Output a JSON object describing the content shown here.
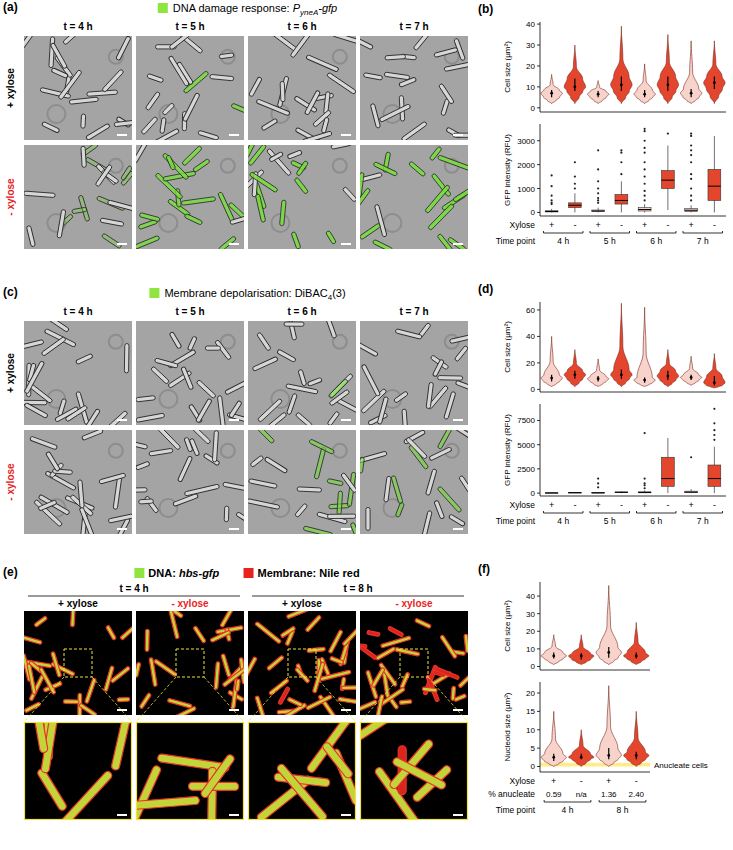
{
  "figure": {
    "panels": [
      {
        "letter": "(a)",
        "title": {
          "text": "DNA damage response: ",
          "main": "P",
          "sub": "yneA",
          "suffix": "-gfp",
          "italic": true,
          "color": "#8ee53f"
        },
        "columns": [
          "t = 4 h",
          "t = 5 h",
          "t = 6 h",
          "t = 7 h"
        ],
        "rows": [
          "+ xylose",
          "- xylose"
        ]
      },
      {
        "letter": "(c)",
        "title": {
          "text": "Membrane depolarisation: ",
          "main": "DiBAC",
          "sub": "4",
          "suffix": "(3)",
          "italic": false,
          "color": "#8ee53f"
        },
        "columns": [
          "t = 4 h",
          "t = 5 h",
          "t = 6 h",
          "t = 7 h"
        ],
        "rows": [
          "+ xylose",
          "- xylose"
        ]
      }
    ],
    "panel_e": {
      "letter": "(e)",
      "legend": [
        {
          "label": "DNA: ",
          "italic": "hbs-gfp",
          "color": "#8ee53f"
        },
        {
          "label": "Membrane: Nile red",
          "color": "#e8231c"
        }
      ],
      "groups": [
        "t = 4 h",
        "t = 8 h"
      ],
      "columns": [
        "+ xylose",
        "- xylose",
        "+ xylose",
        "- xylose"
      ]
    },
    "chart_letters": [
      "(b)",
      "(d)",
      "(f)"
    ]
  },
  "chart_data": [
    {
      "type": "violin",
      "y_title": "Cell size (µm²)",
      "categories": [
        null,
        null,
        null,
        null,
        null,
        null,
        null,
        null
      ],
      "colors": [
        "#f8d3cb",
        "#e4462d",
        "#f8d3cb",
        "#e4462d",
        "#f8d3cb",
        "#e4462d",
        "#f8d3cb",
        "#e4462d"
      ],
      "ylim": [
        -2,
        41
      ],
      "yticks": [
        0,
        10,
        20,
        30,
        40
      ],
      "values": [
        {
          "min": 2,
          "q1": 5,
          "median": 7,
          "q3": 8.5,
          "max": 16
        },
        {
          "min": 2,
          "q1": 8,
          "median": 10,
          "q3": 14,
          "max": 30
        },
        {
          "min": 2,
          "q1": 5,
          "median": 6.5,
          "q3": 8,
          "max": 13
        },
        {
          "min": 2,
          "q1": 8,
          "median": 11,
          "q3": 15,
          "max": 39
        },
        {
          "min": 2,
          "q1": 5,
          "median": 6.5,
          "q3": 8.5,
          "max": 21
        },
        {
          "min": 2,
          "q1": 8,
          "median": 11,
          "q3": 15,
          "max": 35
        },
        {
          "min": 2,
          "q1": 5,
          "median": 7,
          "q3": 9,
          "max": 32
        },
        {
          "min": 2,
          "q1": 9,
          "median": 12,
          "q3": 15,
          "max": 32
        }
      ]
    },
    {
      "type": "box",
      "y_title": "GFP intensity (RFU)",
      "categories": [
        "+",
        "-",
        "+",
        "-",
        "+",
        "-",
        "+",
        "-"
      ],
      "x_title": "Xylose",
      "groups": [
        "4 h",
        "5 h",
        "6 h",
        "7 h"
      ],
      "group_title": "Time point",
      "colors": [
        "#f8d3cb",
        "#e4462d",
        "#f8d3cb",
        "#e4462d",
        "#f8d3cb",
        "#e4462d",
        "#f8d3cb",
        "#e4462d"
      ],
      "ylim": [
        -150,
        3700
      ],
      "yticks": [
        0,
        1000,
        2000,
        3000
      ],
      "values": [
        {
          "whisker_low": 0,
          "q1": 20,
          "median": 40,
          "q3": 70,
          "whisker_high": 150,
          "outliers": [
            350,
            400,
            500,
            700,
            1100,
            1550
          ]
        },
        {
          "whisker_low": 0,
          "q1": 200,
          "median": 300,
          "q3": 400,
          "whisker_high": 800,
          "outliers": [
            1000,
            1200,
            1500,
            2100
          ]
        },
        {
          "whisker_low": 0,
          "q1": 30,
          "median": 60,
          "q3": 100,
          "whisker_high": 200,
          "outliers": [
            400,
            500,
            600,
            800,
            1000,
            1300,
            1800,
            2600
          ]
        },
        {
          "whisker_low": 0,
          "q1": 350,
          "median": 500,
          "q3": 750,
          "whisker_high": 1300,
          "outliers": [
            1600,
            2100,
            2500,
            2600
          ]
        },
        {
          "whisker_low": 0,
          "q1": 60,
          "median": 120,
          "q3": 200,
          "whisker_high": 350,
          "outliers": [
            500,
            700,
            900,
            1200,
            1500,
            1800,
            2100,
            2500,
            2700,
            3000,
            3400,
            3500
          ]
        },
        {
          "whisker_low": 100,
          "q1": 1000,
          "median": 1350,
          "q3": 1750,
          "whisker_high": 2800,
          "outliers": [
            3300
          ]
        },
        {
          "whisker_low": 0,
          "q1": 40,
          "median": 90,
          "q3": 160,
          "whisker_high": 300,
          "outliers": [
            500,
            700,
            1000,
            1400,
            1600,
            2100,
            2400,
            2600,
            2800,
            3200,
            3300
          ]
        },
        {
          "whisker_low": 0,
          "q1": 500,
          "median": 1100,
          "q3": 1800,
          "whisker_high": 3200,
          "outliers": []
        }
      ]
    },
    {
      "type": "violin",
      "y_title": "Cell size (µm²)",
      "categories": [
        null,
        null,
        null,
        null,
        null,
        null,
        null,
        null
      ],
      "colors": [
        "#f8d3cb",
        "#e4462d",
        "#f8d3cb",
        "#e4462d",
        "#f8d3cb",
        "#e4462d",
        "#f8d3cb",
        "#e4462d"
      ],
      "ylim": [
        -2,
        66
      ],
      "yticks": [
        0,
        20,
        40,
        60
      ],
      "values": [
        {
          "min": 2,
          "q1": 6,
          "median": 8.5,
          "q3": 11,
          "max": 40
        },
        {
          "min": 2,
          "q1": 8,
          "median": 11,
          "q3": 14,
          "max": 30
        },
        {
          "min": 2,
          "q1": 6,
          "median": 8,
          "q3": 10,
          "max": 23
        },
        {
          "min": 2,
          "q1": 8,
          "median": 11,
          "q3": 15,
          "max": 65
        },
        {
          "min": 2,
          "q1": 5,
          "median": 7,
          "q3": 9,
          "max": 62
        },
        {
          "min": 2,
          "q1": 7,
          "median": 10,
          "q3": 14,
          "max": 30
        },
        {
          "min": 3,
          "q1": 7,
          "median": 9,
          "q3": 11,
          "max": 25
        },
        {
          "min": 1,
          "q1": 3,
          "median": 5,
          "q3": 10,
          "max": 27
        }
      ]
    },
    {
      "type": "box",
      "y_title": "GFP intensity (RFU)",
      "categories": [
        "+",
        "-",
        "+",
        "-",
        "+",
        "-",
        "+",
        "-"
      ],
      "x_title": "Xylose",
      "groups": [
        "4 h",
        "5 h",
        "6 h",
        "7 h"
      ],
      "group_title": "Time point",
      "colors": [
        "#f8d3cb",
        "#e4462d",
        "#f8d3cb",
        "#e4462d",
        "#f8d3cb",
        "#e4462d",
        "#f8d3cb",
        "#e4462d"
      ],
      "ylim": [
        -300,
        9200
      ],
      "yticks": [
        0,
        2500,
        5000,
        7500
      ],
      "values": [
        {
          "whisker_low": 0,
          "q1": 10,
          "median": 20,
          "q3": 30,
          "whisker_high": 50,
          "outliers": []
        },
        {
          "whisker_low": 0,
          "q1": 20,
          "median": 40,
          "q3": 60,
          "whisker_high": 100,
          "outliers": []
        },
        {
          "whisker_low": 0,
          "q1": 10,
          "median": 30,
          "q3": 50,
          "whisker_high": 80,
          "outliers": [
            600,
            1000,
            1500
          ]
        },
        {
          "whisker_low": 0,
          "q1": 50,
          "median": 80,
          "q3": 120,
          "whisker_high": 200,
          "outliers": []
        },
        {
          "whisker_low": 0,
          "q1": 30,
          "median": 70,
          "q3": 130,
          "whisker_high": 300,
          "outliers": [
            500,
            800,
            1000,
            1500,
            6200
          ]
        },
        {
          "whisker_low": 0,
          "q1": 700,
          "median": 1500,
          "q3": 3700,
          "whisker_high": 5700,
          "outliers": []
        },
        {
          "whisker_low": 0,
          "q1": 40,
          "median": 100,
          "q3": 200,
          "whisker_high": 400,
          "outliers": [
            3700
          ]
        },
        {
          "whisker_low": 0,
          "q1": 700,
          "median": 1500,
          "q3": 2900,
          "whisker_high": 4800,
          "outliers": [
            5500,
            6000,
            6500,
            7200,
            8700
          ]
        }
      ]
    },
    {
      "type": "violin",
      "y_title": "Cell size (µm²)",
      "categories": [
        null,
        null,
        null,
        null
      ],
      "colors": [
        "#f8d3cb",
        "#e4462d",
        "#f8d3cb",
        "#e4462d"
      ],
      "ylim": [
        -2,
        48
      ],
      "yticks": [
        0,
        10,
        20,
        30,
        40
      ],
      "values": [
        {
          "min": 1,
          "q1": 4.5,
          "median": 6,
          "q3": 8,
          "max": 18
        },
        {
          "min": 1,
          "q1": 4,
          "median": 6,
          "q3": 7.5,
          "max": 18
        },
        {
          "min": 1,
          "q1": 5,
          "median": 8,
          "q3": 11,
          "max": 46
        },
        {
          "min": 1,
          "q1": 4.5,
          "median": 6,
          "q3": 8,
          "max": 25
        }
      ]
    },
    {
      "type": "violin",
      "y_title": "Nucleoid size (µm²)",
      "categories": [
        "+",
        "-",
        "+",
        "-"
      ],
      "x_title": "Xylose",
      "row_labels": {
        "title": "% anucleate",
        "values": [
          "0.59",
          "n/a",
          "1.36",
          "2.40"
        ]
      },
      "groups": [
        "4 h",
        "8 h"
      ],
      "group_title": "Time point",
      "annotation": {
        "range": [
          0,
          1
        ],
        "label": "Anucleate cells"
      },
      "colors": [
        "#f8d3cb",
        "#e4462d",
        "#f8d3cb",
        "#e4462d"
      ],
      "ylim": [
        -1.5,
        23
      ],
      "yticks": [
        0,
        5,
        10,
        15,
        20
      ],
      "values": [
        {
          "min": 0,
          "q1": 1.5,
          "median": 2.5,
          "q3": 3.5,
          "max": 15
        },
        {
          "min": 0,
          "q1": 2,
          "median": 2.5,
          "q3": 3.5,
          "max": 10
        },
        {
          "min": 0,
          "q1": 2,
          "median": 3,
          "q3": 5,
          "max": 22
        },
        {
          "min": 0,
          "q1": 2,
          "median": 3,
          "q3": 4,
          "max": 15
        }
      ]
    }
  ]
}
